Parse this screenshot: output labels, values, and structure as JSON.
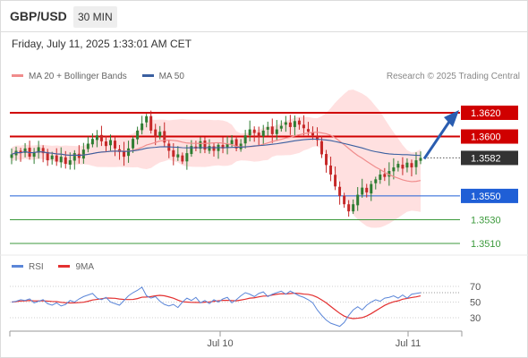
{
  "header": {
    "pair": "GBP/USD",
    "timeframe": "30 MIN",
    "datetime": "Friday, July 11, 2025 1:33:01 AM CET"
  },
  "legend": {
    "ma20_label": "MA 20 + Bollinger Bands",
    "ma50_label": "MA 50",
    "credit": "Research © 2025 Trading Central"
  },
  "rsi_legend": {
    "rsi_label": "RSI",
    "ma_label": "9MA"
  },
  "colors": {
    "bull": "#2e7d32",
    "bear": "#c62828",
    "resistance": "#d00000",
    "support": "#1f5fd6",
    "target": "#3c9a3c",
    "current": "#333333",
    "bands": "#ffd6d6",
    "ma20": "#f08c8c",
    "ma50": "#3a5fa0",
    "arrow": "#2a5db0",
    "rsi": "#5b86d8",
    "rsi_ma": "#e33030"
  },
  "chart_data": [
    {
      "type": "candlestick",
      "x_ticks": [
        "Jul 10",
        "Jul 11"
      ],
      "ylim": [
        1.3495,
        1.365
      ],
      "levels": [
        {
          "value": 1.362,
          "label": "1.3620",
          "kind": "resistance"
        },
        {
          "value": 1.36,
          "label": "1.3600",
          "kind": "resistance"
        },
        {
          "value": 1.3582,
          "label": "1.3582",
          "kind": "current"
        },
        {
          "value": 1.355,
          "label": "1.3550",
          "kind": "support"
        },
        {
          "value": 1.353,
          "label": "1.3530",
          "kind": "target"
        },
        {
          "value": 1.351,
          "label": "1.3510",
          "kind": "target"
        }
      ],
      "close": [
        1.3585,
        1.3588,
        1.3586,
        1.359,
        1.3583,
        1.3587,
        1.3591,
        1.3586,
        1.358,
        1.3584,
        1.3579,
        1.3583,
        1.3577,
        1.358,
        1.3586,
        1.3582,
        1.3589,
        1.3594,
        1.3598,
        1.3601,
        1.3596,
        1.3592,
        1.3597,
        1.359,
        1.3587,
        1.3583,
        1.359,
        1.3598,
        1.3605,
        1.3611,
        1.3617,
        1.3605,
        1.36,
        1.3604,
        1.3595,
        1.3588,
        1.3583,
        1.3585,
        1.3579,
        1.3586,
        1.3592,
        1.359,
        1.3596,
        1.3589,
        1.3592,
        1.3588,
        1.3593,
        1.359,
        1.3594,
        1.3597,
        1.359,
        1.3594,
        1.3601,
        1.3606,
        1.3603,
        1.36,
        1.3605,
        1.3608,
        1.3602,
        1.3606,
        1.3609,
        1.3612,
        1.3608,
        1.3613,
        1.361,
        1.3607,
        1.3604,
        1.3601,
        1.3597,
        1.3585,
        1.3576,
        1.3568,
        1.3558,
        1.355,
        1.3543,
        1.3537,
        1.3543,
        1.3551,
        1.3557,
        1.3553,
        1.356,
        1.3564,
        1.3568,
        1.3566,
        1.3571,
        1.3574,
        1.3577,
        1.3573,
        1.3578,
        1.3574,
        1.358,
        1.3582
      ],
      "rsi": [
        50,
        51,
        53,
        52,
        54,
        49,
        51,
        53,
        48,
        46,
        49,
        45,
        47,
        52,
        50,
        54,
        57,
        59,
        61,
        55,
        53,
        56,
        50,
        48,
        46,
        52,
        58,
        62,
        65,
        69,
        58,
        55,
        57,
        51,
        47,
        45,
        47,
        43,
        50,
        55,
        52,
        56,
        49,
        52,
        48,
        53,
        50,
        54,
        56,
        49,
        53,
        58,
        62,
        60,
        57,
        61,
        63,
        57,
        60,
        62,
        64,
        60,
        64,
        61,
        58,
        56,
        53,
        49,
        40,
        33,
        27,
        23,
        21,
        19,
        24,
        33,
        40,
        44,
        40,
        46,
        50,
        53,
        51,
        55,
        56,
        58,
        55,
        59,
        55,
        60,
        61,
        62
      ],
      "rsi_ticks": [
        "70",
        "50",
        "30"
      ]
    }
  ]
}
